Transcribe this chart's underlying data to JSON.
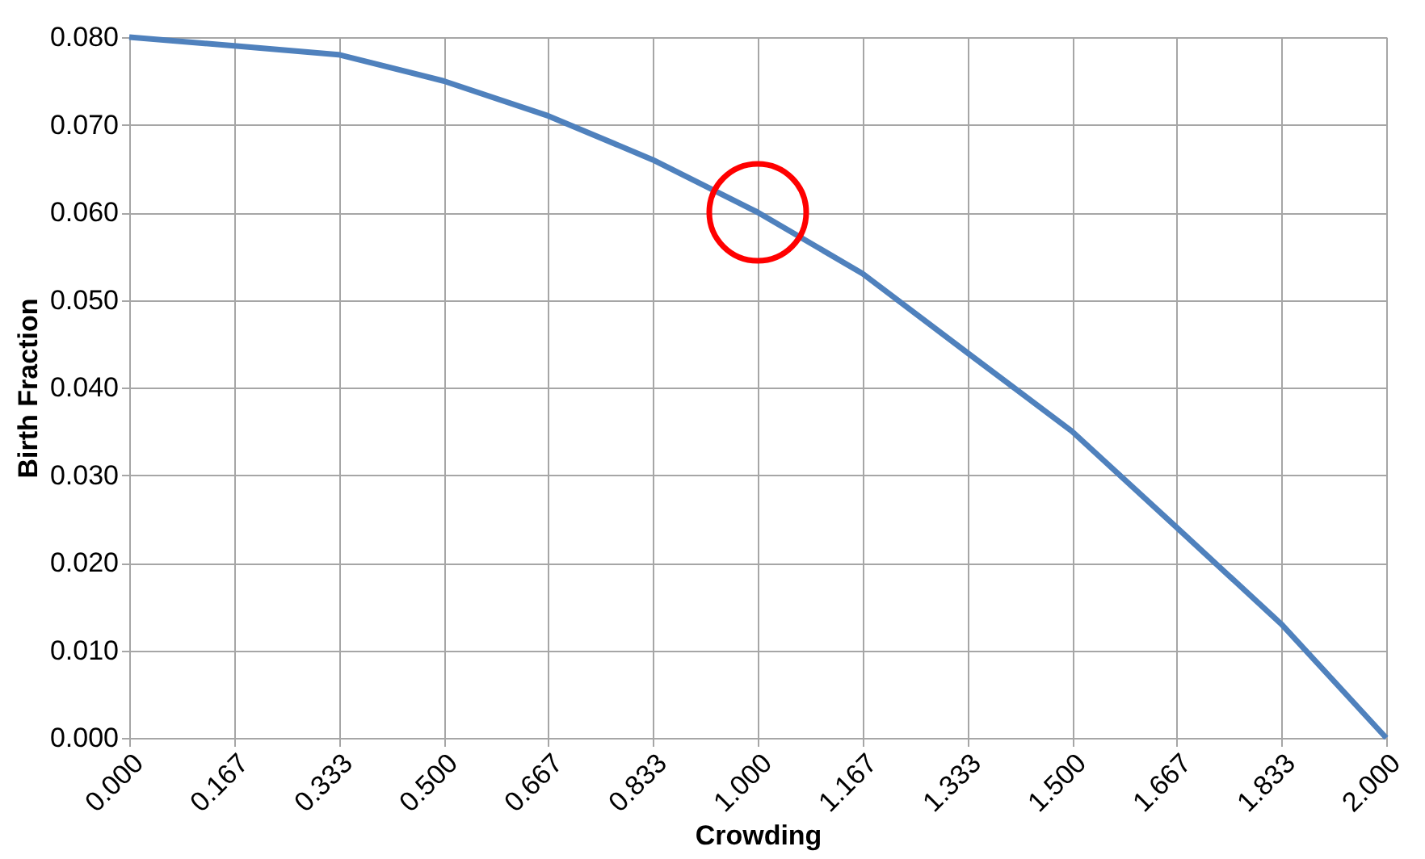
{
  "chart_data": {
    "type": "line",
    "xlabel": "Crowding",
    "ylabel": "Birth Fraction",
    "x": [
      0.0,
      0.167,
      0.333,
      0.5,
      0.667,
      0.833,
      1.0,
      1.167,
      1.333,
      1.5,
      1.667,
      1.833,
      2.0
    ],
    "series": [
      {
        "color": "#4f81bd",
        "values": [
          0.08,
          0.079,
          0.078,
          0.075,
          0.071,
          0.066,
          0.06,
          0.053,
          0.044,
          0.035,
          0.024,
          0.013,
          0.0
        ]
      },
      {
        "type": "scatter",
        "marker": "circle",
        "color": "#ff0000",
        "x": [
          1.0
        ],
        "values": [
          0.06
        ]
      }
    ],
    "xlim": [
      0,
      2
    ],
    "ylim": [
      0,
      0.08
    ],
    "xticks": [
      {
        "value": 0,
        "label": "0.000"
      },
      {
        "value": 0.167,
        "label": "0.167"
      },
      {
        "value": 0.333,
        "label": "0.333"
      },
      {
        "value": 0.5,
        "label": "0.500"
      },
      {
        "value": 0.667,
        "label": "0.667"
      },
      {
        "value": 0.833,
        "label": "0.833"
      },
      {
        "value": 1,
        "label": "1.000"
      },
      {
        "value": 1.167,
        "label": "1.167"
      },
      {
        "value": 1.333,
        "label": "1.333"
      },
      {
        "value": 1.5,
        "label": "1.500"
      },
      {
        "value": 1.667,
        "label": "1.667"
      },
      {
        "value": 1.833,
        "label": "1.833"
      },
      {
        "value": 2,
        "label": "2.000"
      }
    ],
    "yticks": [
      {
        "value": 0,
        "label": "0.000"
      },
      {
        "value": 0.01,
        "label": "0.010"
      },
      {
        "value": 0.02,
        "label": "0.020"
      },
      {
        "value": 0.03,
        "label": "0.030"
      },
      {
        "value": 0.04,
        "label": "0.040"
      },
      {
        "value": 0.05,
        "label": "0.050"
      },
      {
        "value": 0.06,
        "label": "0.060"
      },
      {
        "value": 0.07,
        "label": "0.070"
      },
      {
        "value": 0.08,
        "label": "0.080"
      }
    ],
    "grid": true,
    "marker": "none",
    "line_style": "solid"
  }
}
